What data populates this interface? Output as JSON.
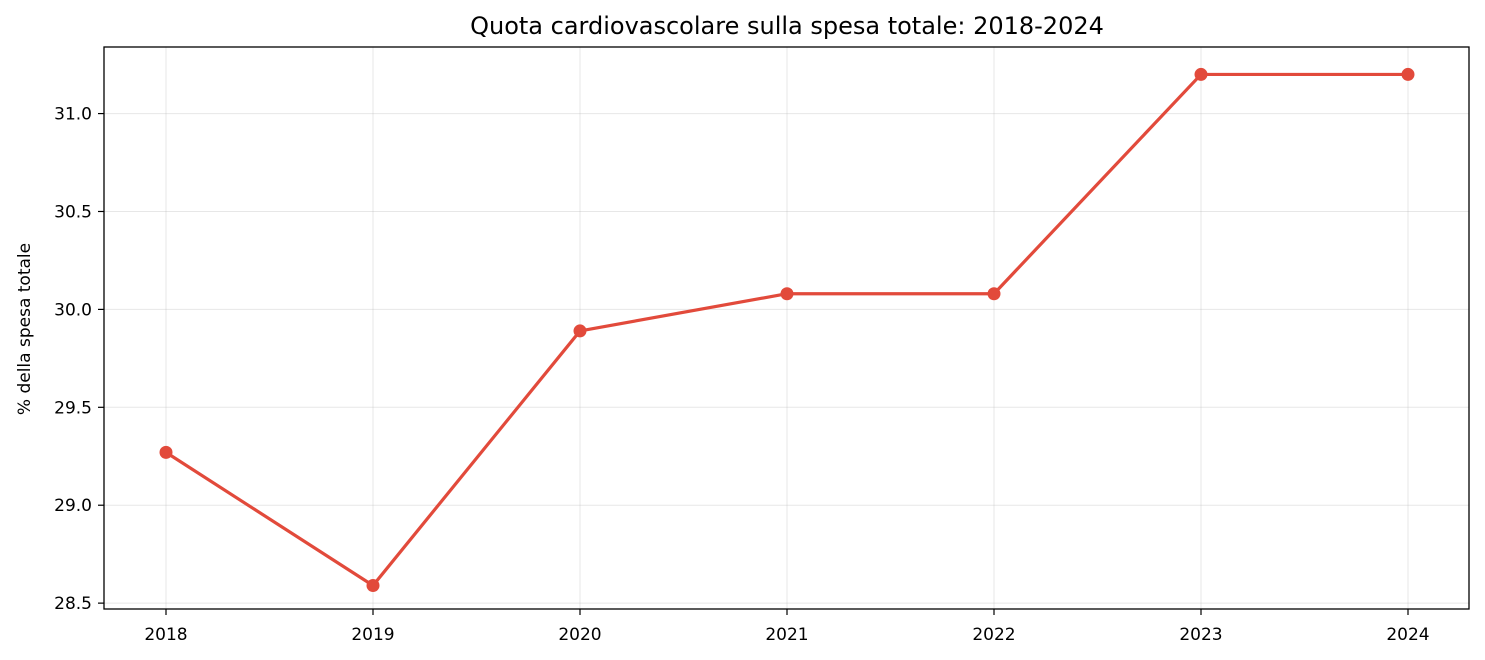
{
  "chart_data": {
    "type": "line",
    "title": "Quota cardiovascolare sulla spesa totale: 2018-2024",
    "xlabel": "",
    "ylabel": "% della spesa totale",
    "categories": [
      "2018",
      "2019",
      "2020",
      "2021",
      "2022",
      "2023",
      "2024"
    ],
    "series": [
      {
        "values": [
          29.27,
          28.59,
          29.89,
          30.08,
          30.08,
          31.2,
          31.2
        ],
        "color": "#e24a3b"
      }
    ],
    "ylim": [
      28.47,
      31.34
    ],
    "yticks": [
      "28.5",
      "29.0",
      "29.5",
      "30.0",
      "30.5",
      "31.0"
    ],
    "grid": true,
    "markers": true
  }
}
